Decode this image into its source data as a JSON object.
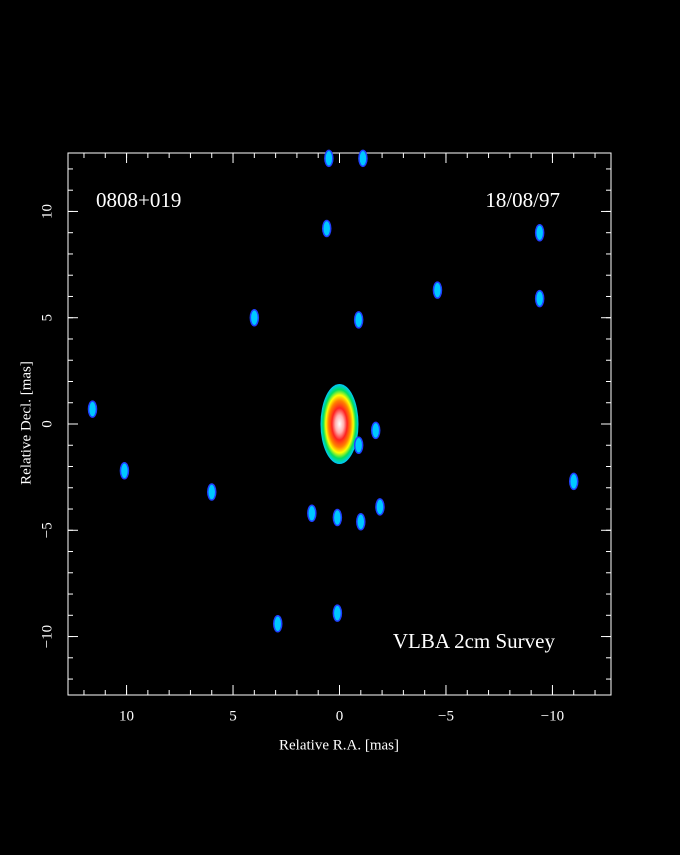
{
  "chart_data": {
    "type": "scatter",
    "xlabel": "Relative R.A. [mas]",
    "ylabel": "Relative Decl. [mas]",
    "annotations": [
      "0808+019",
      "18/08/97",
      "VLBA 2cm Survey"
    ],
    "xlim": [
      12.75,
      -12.75
    ],
    "ylim": [
      -12.75,
      12.75
    ],
    "xticks": [
      10,
      5,
      0,
      {
        "value": -5,
        "label": "−5"
      },
      {
        "value": -10,
        "label": "−10"
      }
    ],
    "yticks": [
      {
        "value": -10,
        "label": "−10"
      },
      {
        "value": -5,
        "label": "−5"
      },
      0,
      5,
      10
    ],
    "minor_tick_step": 1,
    "color": "#00c8ff",
    "x": [
      0,
      -0.9,
      -1.7,
      0.1,
      1.3,
      -1.0,
      -1.9,
      0.6,
      0.5,
      -1.1,
      4.0,
      -0.9,
      -4.6,
      -9.4,
      -9.4,
      11.6,
      6.0,
      -11.0,
      2.9,
      0.1,
      10.1
    ],
    "values": [
      0,
      -1.0,
      -0.3,
      -4.4,
      -4.2,
      -4.6,
      -3.9,
      9.2,
      12.5,
      12.5,
      5.0,
      4.9,
      6.3,
      9.0,
      5.9,
      0.7,
      -3.2,
      -2.7,
      -9.4,
      -8.9,
      -2.2
    ]
  }
}
